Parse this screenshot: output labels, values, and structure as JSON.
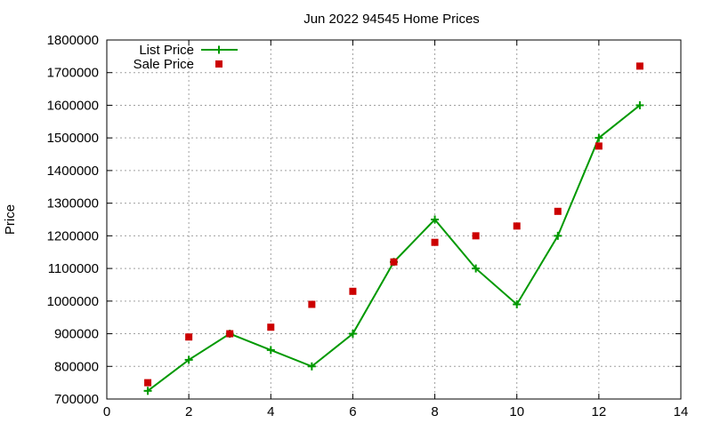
{
  "chart_data": {
    "type": "line",
    "title": "Jun 2022 94545 Home Prices",
    "xlabel": "",
    "ylabel": "Price",
    "xlim": [
      0,
      14
    ],
    "ylim": [
      700000,
      1800000
    ],
    "x_ticks": [
      0,
      2,
      4,
      6,
      8,
      10,
      12,
      14
    ],
    "y_ticks": [
      700000,
      800000,
      900000,
      1000000,
      1100000,
      1200000,
      1300000,
      1400000,
      1500000,
      1600000,
      1700000,
      1800000
    ],
    "grid": true,
    "legend_position": "top-left",
    "series": [
      {
        "name": "List Price",
        "style": "linespoints",
        "marker": "plus",
        "color": "#009900",
        "x": [
          1,
          2,
          3,
          4,
          5,
          6,
          7,
          8,
          9,
          10,
          11,
          12,
          13
        ],
        "y": [
          725000,
          820000,
          900000,
          850000,
          800000,
          900000,
          1120000,
          1250000,
          1100000,
          990000,
          1200000,
          1500000,
          1600000
        ]
      },
      {
        "name": "Sale Price",
        "style": "points",
        "marker": "square",
        "color": "#cc0000",
        "x": [
          1,
          2,
          3,
          4,
          5,
          6,
          7,
          8,
          9,
          10,
          11,
          12,
          13
        ],
        "y": [
          750000,
          890000,
          900000,
          920000,
          990000,
          1030000,
          1120000,
          1180000,
          1200000,
          1230000,
          1275000,
          1475000,
          1720000
        ]
      }
    ]
  }
}
